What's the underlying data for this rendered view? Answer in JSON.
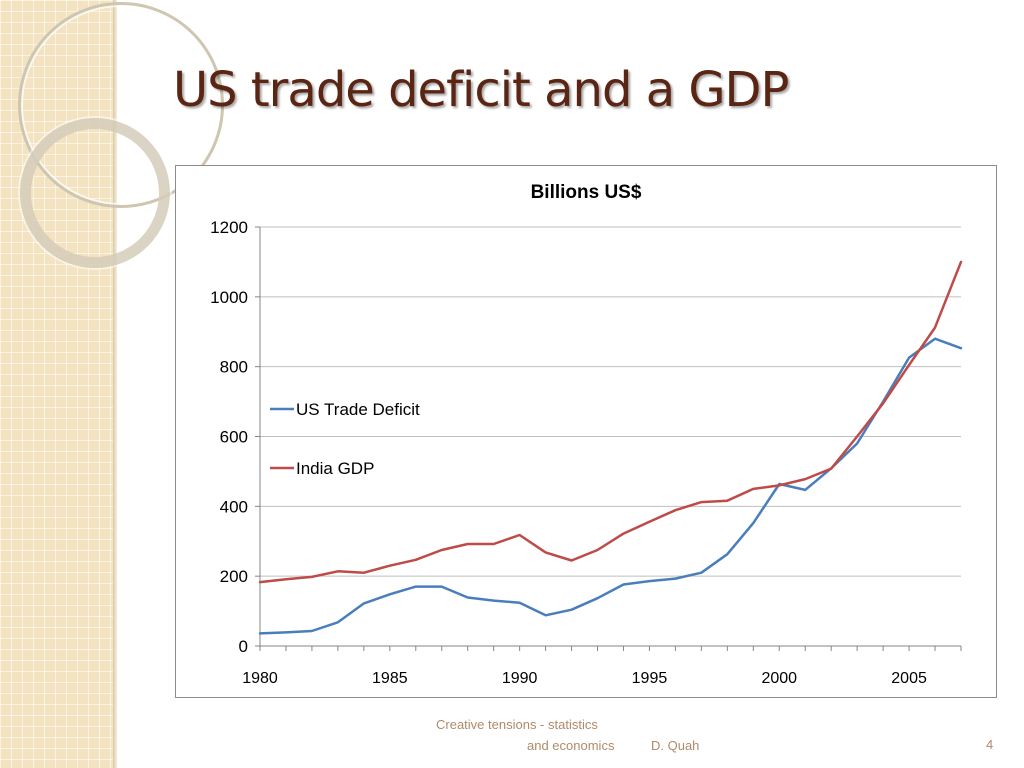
{
  "slide": {
    "title": "US trade deficit and a GDP",
    "footer": {
      "line1": "Creative tensions - statistics",
      "line2": "and economics",
      "author": "D. Quah",
      "page": "4"
    }
  },
  "colors": {
    "title": "#5a2512",
    "us_trade_deficit": "#4a7ebb",
    "india_gdp": "#be4b48",
    "gridline": "#bfbfbf",
    "side_band": "#f3e3c0",
    "footer_text": "#b08a6a"
  },
  "chart_data": {
    "type": "line",
    "title": "Billions US$",
    "xlabel": "",
    "ylabel": "",
    "x": [
      1980,
      1981,
      1982,
      1983,
      1984,
      1985,
      1986,
      1987,
      1988,
      1989,
      1990,
      1991,
      1992,
      1993,
      1994,
      1995,
      1996,
      1997,
      1998,
      1999,
      2000,
      2001,
      2002,
      2003,
      2004,
      2005,
      2006,
      2007
    ],
    "xlim": [
      1980,
      2007
    ],
    "xticks": [
      1980,
      1985,
      1990,
      1995,
      2000,
      2005
    ],
    "ylim": [
      0,
      1200
    ],
    "yticks": [
      0,
      200,
      400,
      600,
      800,
      1000,
      1200
    ],
    "grid": true,
    "legend_position": "left",
    "series": [
      {
        "name": "US Trade Deficit",
        "color": "#4a7ebb",
        "values": [
          36,
          39,
          43,
          68,
          122,
          148,
          170,
          170,
          139,
          130,
          124,
          88,
          104,
          137,
          176,
          186,
          193,
          210,
          263,
          352,
          464,
          447,
          509,
          580,
          700,
          826,
          880,
          853
        ]
      },
      {
        "name": "India GDP",
        "color": "#be4b48",
        "values": [
          183,
          191,
          198,
          214,
          210,
          230,
          247,
          275,
          292,
          292,
          318,
          268,
          245,
          275,
          322,
          356,
          389,
          412,
          416,
          450,
          460,
          478,
          508,
          600,
          695,
          805,
          912,
          1100
        ]
      }
    ]
  }
}
